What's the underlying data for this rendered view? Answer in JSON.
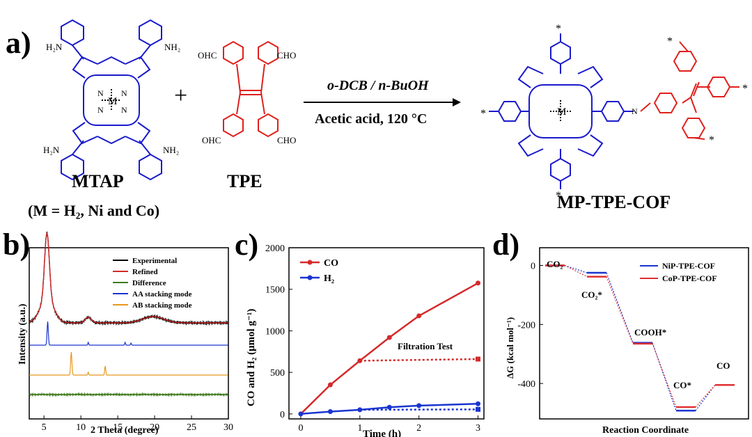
{
  "panel_a": {
    "letter": "a)",
    "mtap_label": "MTAP",
    "mtap_note": "(M = H₂, Ni and Co)",
    "tpe_label": "TPE",
    "product_label": "MP-TPE-COF",
    "plus": "+",
    "conditions_top": "o-DCB / n-BuOH",
    "conditions_bottom": "Acetic acid, 120 °C",
    "nh2": "NH₂",
    "h2n": "H₂N",
    "cho": "CHO",
    "ohc": "OHC",
    "metal": "M",
    "n": "N",
    "star": "*"
  },
  "colors": {
    "porphyrin": "#1a1acc",
    "tpe": "#e0201c",
    "co": "#d42a2a",
    "h2": "#1a35d0",
    "experimental": "#000000",
    "refined": "#d42a2a",
    "difference": "#3f7a1e",
    "aa": "#1a35d0",
    "ab": "#e8981c",
    "nip": "#1a35d0",
    "cop": "#e03030"
  },
  "chart_data": [
    {
      "panel": "b)",
      "type": "line",
      "xlabel": "2 Theta (degree)",
      "ylabel": "Intensity (a.u.)",
      "xlim": [
        3,
        30
      ],
      "xticks": [
        5,
        10,
        15,
        20,
        25,
        30
      ],
      "legend": [
        "Experimental",
        "Refined",
        "Difference",
        "AA stacking mode",
        "AB stacking mode"
      ],
      "series": [
        {
          "name": "Experimental",
          "peaks_2theta": [
            5.4,
            11.0,
            19.8
          ]
        },
        {
          "name": "Refined",
          "peaks_2theta": [
            5.4,
            11.0,
            19.8
          ]
        },
        {
          "name": "Difference",
          "peaks_2theta": []
        },
        {
          "name": "AA stacking mode",
          "peaks_2theta": [
            5.5,
            11.0,
            16.0,
            16.8
          ]
        },
        {
          "name": "AB stacking mode",
          "peaks_2theta": [
            8.7,
            11.0,
            13.3
          ]
        }
      ]
    },
    {
      "panel": "c)",
      "type": "line",
      "xlabel": "Time (h)",
      "ylabel": "CO and H₂ (μmol g⁻¹)",
      "xlim": [
        -0.2,
        3.1
      ],
      "ylim": [
        -60,
        2000
      ],
      "xticks": [
        0,
        1,
        2,
        3
      ],
      "yticks": [
        0,
        500,
        1000,
        1500,
        2000
      ],
      "annotation": "Filtration Test",
      "series": [
        {
          "name": "CO",
          "x": [
            0,
            0.5,
            1,
            1.5,
            2,
            3
          ],
          "values": [
            0,
            350,
            640,
            920,
            1180,
            1575
          ]
        },
        {
          "name": "H₂",
          "x": [
            0,
            0.5,
            1,
            1.5,
            2,
            3
          ],
          "values": [
            0,
            28,
            50,
            80,
            100,
            122
          ]
        },
        {
          "name": "CO filtration",
          "x": [
            1,
            3
          ],
          "values": [
            640,
            660
          ]
        },
        {
          "name": "H₂ filtration",
          "x": [
            1,
            3
          ],
          "values": [
            50,
            55
          ]
        }
      ]
    },
    {
      "panel": "d)",
      "type": "line",
      "xlabel": "Reaction Coordinate",
      "ylabel": "ΔG (kcal mol⁻¹)",
      "ylim": [
        -520,
        60
      ],
      "yticks": [
        0,
        -200,
        -400
      ],
      "states": [
        "CO₂",
        "CO₂*",
        "COOH*",
        "CO*",
        "CO"
      ],
      "series": [
        {
          "name": "NiP-TPE-COF",
          "values": [
            0,
            -25,
            -262,
            -492,
            -405
          ]
        },
        {
          "name": "CoP-TPE-COF",
          "values": [
            0,
            -38,
            -265,
            -480,
            -405
          ]
        }
      ]
    }
  ]
}
